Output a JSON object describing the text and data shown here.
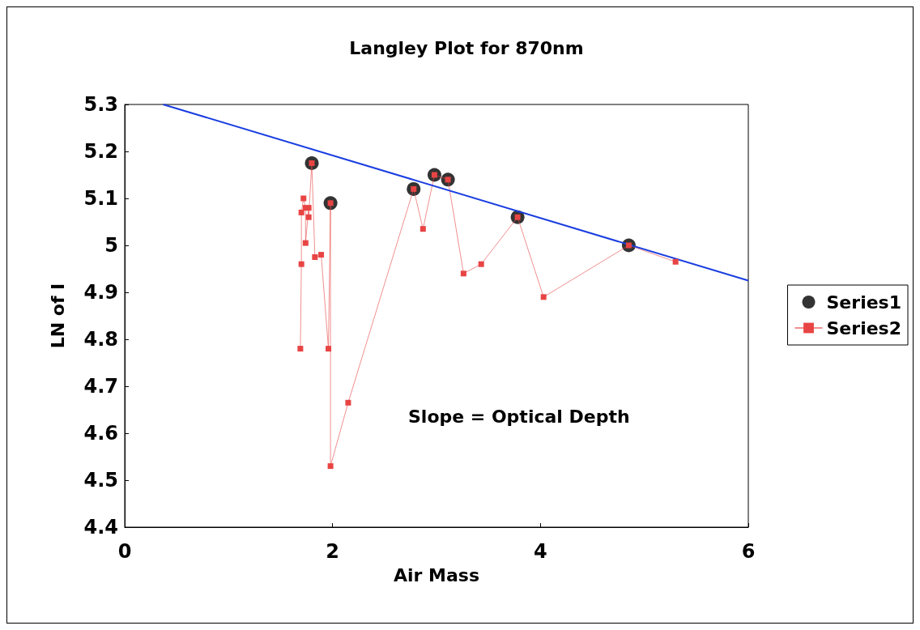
{
  "chart_data": {
    "type": "scatter",
    "title": "Langley Plot for 870nm",
    "xlabel": "Air Mass",
    "ylabel": "LN of I",
    "annotations": [
      "Slope = Optical Depth"
    ],
    "xlim": [
      0,
      6
    ],
    "xticks": [
      0,
      2,
      4,
      6
    ],
    "ylim": [
      4.4,
      5.3
    ],
    "yticks": [
      4.4,
      4.5,
      4.6,
      4.7,
      4.8,
      4.9,
      5,
      5.1,
      5.2,
      5.3
    ],
    "grid": false,
    "legend": "right",
    "series": [
      {
        "name": "Series1",
        "marker": "circle",
        "color": "#000000",
        "x": [
          1.8,
          1.98,
          2.78,
          2.98,
          3.11,
          3.78,
          4.85
        ],
        "values": [
          5.175,
          5.09,
          5.12,
          5.15,
          5.14,
          5.06,
          5.0
        ]
      },
      {
        "name": "Series2",
        "type": "line",
        "marker": "square",
        "color": "#e84444",
        "x": [
          1.69,
          1.7,
          1.7,
          1.72,
          1.74,
          1.74,
          1.77,
          1.77,
          1.8,
          1.83,
          1.89,
          1.96,
          1.98,
          1.98,
          2.15,
          2.78,
          2.87,
          2.98,
          3.11,
          3.26,
          3.43,
          3.78,
          4.03,
          4.85,
          5.3
        ],
        "values": [
          4.78,
          4.96,
          5.07,
          5.1,
          5.08,
          5.005,
          5.08,
          5.06,
          5.175,
          4.975,
          4.98,
          4.78,
          5.09,
          4.53,
          4.665,
          5.12,
          5.035,
          5.15,
          5.14,
          4.94,
          4.96,
          5.06,
          4.89,
          5.0,
          4.965
        ]
      },
      {
        "type": "line",
        "marker": "none",
        "color": "#1a3ee0",
        "x": [
          0.37,
          6
        ],
        "values": [
          5.3,
          4.925
        ]
      }
    ]
  }
}
